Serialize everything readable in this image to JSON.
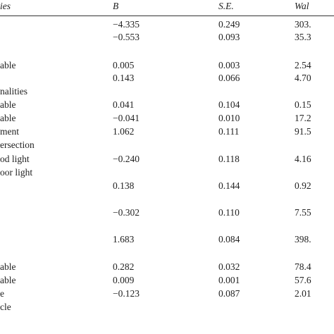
{
  "table": {
    "header": [
      "ies",
      "B",
      "S.E.",
      "Wal"
    ],
    "rows": [
      {
        "b": "−4.335",
        "se": "0.249",
        "wald": "303."
      },
      {
        "b": "−0.553",
        "se": "0.093",
        "wald": "35.3"
      },
      {
        "label": "able",
        "b": "0.005",
        "se": "0.003",
        "wald": "2.54"
      },
      {
        "b": "0.143",
        "se": "0.066",
        "wald": "4.70"
      },
      {
        "label": "nalities"
      },
      {
        "label": "able",
        "b": "0.041",
        "se": "0.104",
        "wald": "0.15"
      },
      {
        "label": "able",
        "b": "−0.041",
        "se": "0.010",
        "wald": "17.2"
      },
      {
        "label": "ment",
        "b": "1.062",
        "se": "0.111",
        "wald": "91.5"
      },
      {
        "label": "ersection"
      },
      {
        "label": "od light",
        "b": "−0.240",
        "se": "0.118",
        "wald": "4.16"
      },
      {
        "label": "oor light"
      },
      {
        "b": "0.138",
        "se": "0.144",
        "wald": "0.92"
      },
      {
        "b": "−0.302",
        "se": "0.110",
        "wald": "7.55"
      },
      {
        "b": "1.683",
        "se": "0.084",
        "wald": "398."
      },
      {
        "label": "able",
        "b": "0.282",
        "se": "0.032",
        "wald": "78.4"
      },
      {
        "label": "able",
        "b": "0.009",
        "se": "0.001",
        "wald": "57.6"
      },
      {
        "label": "e",
        "b": "−0.123",
        "se": "0.087",
        "wald": "2.01"
      },
      {
        "label": "cle"
      }
    ]
  }
}
